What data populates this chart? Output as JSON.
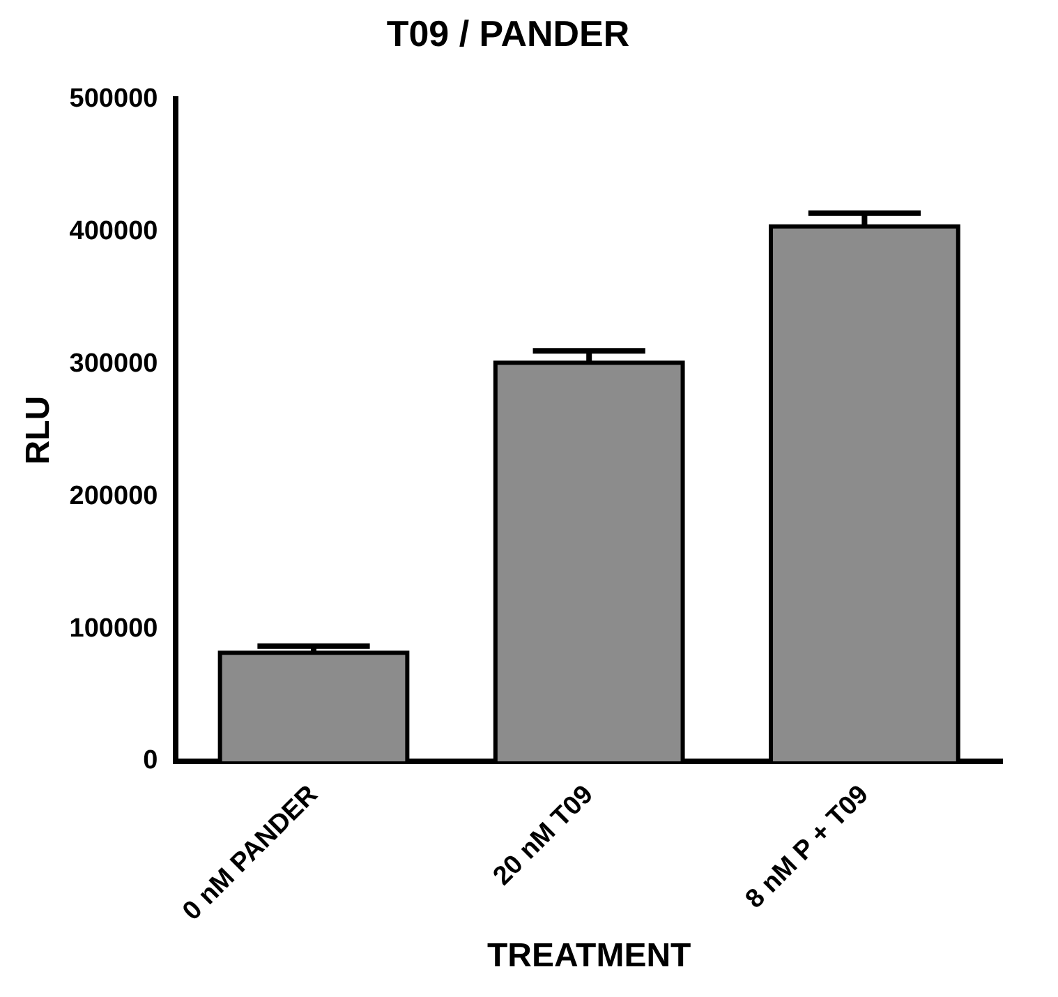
{
  "chart_data": {
    "type": "bar",
    "title": "T09 / PANDER",
    "xlabel": "TREATMENT",
    "ylabel": "RLU",
    "categories": [
      "0 nM PANDER",
      "20 nM T09",
      "8 nM P + T09"
    ],
    "values": [
      82000,
      301000,
      404000
    ],
    "errors": [
      [
        82000,
        87000
      ],
      [
        301000,
        310000
      ],
      [
        404000,
        414000
      ]
    ],
    "color": "#8c8c8c",
    "ylim": [
      0,
      500000
    ],
    "yticks": [
      0,
      100000,
      200000,
      300000,
      400000,
      500000
    ],
    "grid": false,
    "legend": false
  }
}
